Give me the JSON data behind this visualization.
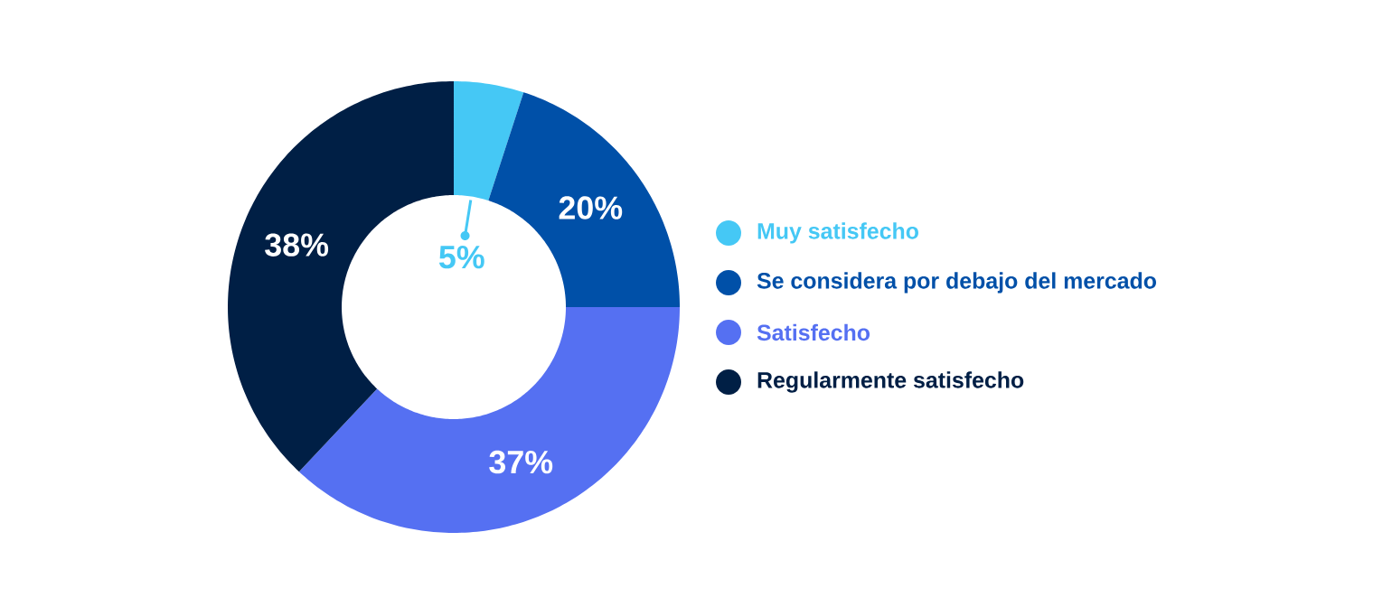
{
  "chart_data": {
    "type": "donut",
    "categories": [
      "Muy satisfecho",
      "Se considera por debajo del mercado",
      "Satisfecho",
      "Regularmente satisfecho"
    ],
    "values": [
      5,
      20,
      37,
      38
    ],
    "colors": [
      "#45c8f5",
      "#0050a8",
      "#5570f2",
      "#001f45"
    ],
    "value_labels": [
      "5%",
      "20%",
      "37%",
      "38%"
    ],
    "legend": "right"
  }
}
